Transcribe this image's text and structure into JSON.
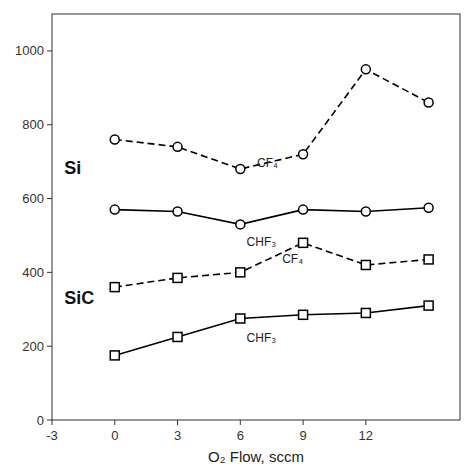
{
  "chart_data": {
    "type": "line",
    "x": [
      0,
      3,
      6,
      9,
      12,
      15
    ],
    "series": [
      {
        "color": "#000000",
        "line_style": "dashed",
        "marker": "circle",
        "values": [
          760,
          740,
          680,
          720,
          950,
          860
        ]
      },
      {
        "color": "#000000",
        "line_style": "solid",
        "marker": "circle",
        "values": [
          570,
          565,
          530,
          570,
          565,
          575
        ]
      },
      {
        "color": "#000000",
        "line_style": "dashed",
        "marker": "square",
        "values": [
          360,
          385,
          400,
          480,
          420,
          435
        ]
      },
      {
        "color": "#000000",
        "line_style": "solid",
        "marker": "square",
        "values": [
          175,
          225,
          275,
          285,
          290,
          310
        ]
      }
    ],
    "xlim": [
      -3,
      16.5
    ],
    "ylim": [
      0,
      1100
    ],
    "xticks": [
      -3,
      0,
      3,
      6,
      9,
      12
    ],
    "yticks": [
      0,
      200,
      400,
      600,
      800,
      1000
    ],
    "x_label": "O₂ Flow, sccm",
    "grid": false,
    "annotations": [
      {
        "text": "CF₄",
        "x": 6.8,
        "y": 710
      },
      {
        "text": "CHF₃",
        "x": 6.3,
        "y": 495
      },
      {
        "text": "CF₄",
        "x": 8.0,
        "y": 448
      },
      {
        "text": "CHF₃",
        "x": 6.3,
        "y": 235
      },
      {
        "text": "Si"
      },
      {
        "text": "SiC"
      }
    ]
  }
}
